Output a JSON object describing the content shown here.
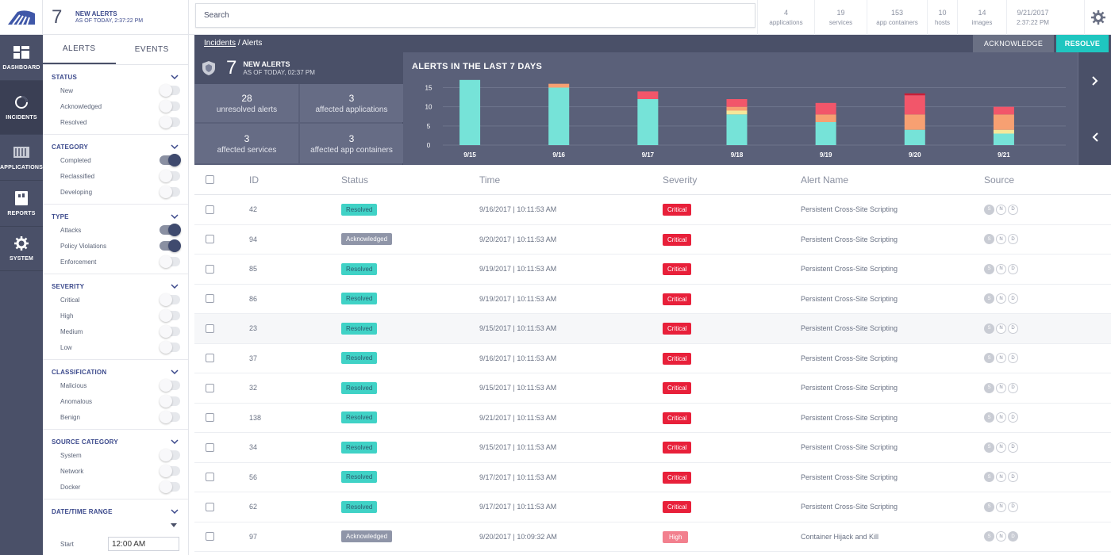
{
  "alert_summary": {
    "count": "7",
    "label": "NEW ALERTS",
    "as_of": "AS OF TODAY, 2:37:22 PM"
  },
  "nav": [
    {
      "label": "DASHBOARD",
      "icon": "dashboard-icon"
    },
    {
      "label": "INCIDENTS",
      "icon": "incidents-icon"
    },
    {
      "label": "APPLICATIONS",
      "icon": "applications-icon"
    },
    {
      "label": "REPORTS",
      "icon": "reports-icon"
    },
    {
      "label": "SYSTEM",
      "icon": "gear-icon"
    }
  ],
  "filter_tabs": [
    "ALERTS",
    "EVENTS"
  ],
  "filters": [
    {
      "title": "STATUS",
      "items": [
        {
          "label": "New",
          "on": false
        },
        {
          "label": "Acknowledged",
          "on": false
        },
        {
          "label": "Resolved",
          "on": false
        }
      ]
    },
    {
      "title": "CATEGORY",
      "items": [
        {
          "label": "Completed",
          "on": true
        },
        {
          "label": "Reclassified",
          "on": false
        },
        {
          "label": "Developing",
          "on": false
        }
      ]
    },
    {
      "title": "TYPE",
      "items": [
        {
          "label": "Attacks",
          "on": true
        },
        {
          "label": "Policy Violations",
          "on": true
        },
        {
          "label": "Enforcement",
          "on": false
        }
      ]
    },
    {
      "title": "SEVERITY",
      "items": [
        {
          "label": "Critical",
          "on": false
        },
        {
          "label": "High",
          "on": false
        },
        {
          "label": "Medium",
          "on": false
        },
        {
          "label": "Low",
          "on": false
        }
      ]
    },
    {
      "title": "CLASSIFICATION",
      "items": [
        {
          "label": "Malicious",
          "on": false
        },
        {
          "label": "Anomalous",
          "on": false
        },
        {
          "label": "Benign",
          "on": false
        }
      ]
    },
    {
      "title": "SOURCE CATEGORY",
      "items": [
        {
          "label": "System",
          "on": false
        },
        {
          "label": "Network",
          "on": false
        },
        {
          "label": "Docker",
          "on": false
        }
      ]
    }
  ],
  "datetime": {
    "title": "DATE/TIME RANGE",
    "start_label": "Start",
    "start_value": "12:00 AM"
  },
  "search": {
    "placeholder": "Search"
  },
  "stats": [
    {
      "value": "4",
      "label": "applications"
    },
    {
      "value": "19",
      "label": "services"
    },
    {
      "value": "153",
      "label": "app containers"
    },
    {
      "value": "10",
      "label": "hosts"
    },
    {
      "value": "14",
      "label": "images"
    },
    {
      "value": "9/21/2017",
      "label": "2:37:22 PM"
    }
  ],
  "breadcrumb": {
    "parent": "Incidents",
    "sep": "/",
    "current": "Alerts"
  },
  "actions": {
    "acknowledge": "ACKNOWLEDGE",
    "resolve": "RESOLVE"
  },
  "summary": {
    "count": "7",
    "label": "NEW ALERTS",
    "as_of": "AS OF TODAY, 02:37 PM",
    "cells": [
      {
        "value": "28",
        "label": "unresolved alerts"
      },
      {
        "value": "3",
        "label": "affected applications"
      },
      {
        "value": "3",
        "label": "affected services"
      },
      {
        "value": "3",
        "label": "affected app containers"
      }
    ]
  },
  "chart_data": {
    "type": "bar",
    "stacked": true,
    "title": "ALERTS IN THE LAST 7 DAYS",
    "categories": [
      "9/15",
      "9/16",
      "9/17",
      "9/18",
      "9/19",
      "9/20",
      "9/21"
    ],
    "y_ticks": [
      "0",
      "5",
      "10",
      "15"
    ],
    "ylim": [
      0,
      18
    ],
    "grid": true,
    "series": [
      {
        "values": [
          17,
          15,
          12,
          8,
          6,
          4,
          3
        ],
        "color": "#76e3d8"
      },
      {
        "values": [
          0,
          0,
          0,
          1,
          0,
          0,
          1
        ],
        "color": "#f5e79a"
      },
      {
        "values": [
          0,
          1,
          0,
          1,
          2,
          4,
          4
        ],
        "color": "#f7a072"
      },
      {
        "values": [
          0,
          0,
          2,
          2,
          3,
          5,
          2
        ],
        "color": "#f2566a"
      },
      {
        "values": [
          0,
          0,
          0,
          0,
          0,
          0.5,
          0
        ],
        "color": "#c81f38"
      }
    ]
  },
  "table": {
    "columns": [
      "ID",
      "Status",
      "Time",
      "Severity",
      "Alert Name",
      "Source"
    ],
    "rows": [
      {
        "id": "42",
        "status": "Resolved",
        "time": "9/16/2017 | 10:11:53 AM",
        "severity": "Critical",
        "name": "Persistent Cross-Site Scripting",
        "src": [
          "S",
          "N",
          "D"
        ],
        "src_filled": [
          true,
          false,
          false
        ]
      },
      {
        "id": "94",
        "status": "Acknowledged",
        "time": "9/20/2017 | 10:11:53 AM",
        "severity": "Critical",
        "name": "Persistent Cross-Site Scripting",
        "src": [
          "S",
          "N",
          "D"
        ],
        "src_filled": [
          true,
          false,
          false
        ]
      },
      {
        "id": "85",
        "status": "Resolved",
        "time": "9/19/2017 | 10:11:53 AM",
        "severity": "Critical",
        "name": "Persistent Cross-Site Scripting",
        "src": [
          "S",
          "N",
          "D"
        ],
        "src_filled": [
          true,
          false,
          false
        ]
      },
      {
        "id": "86",
        "status": "Resolved",
        "time": "9/19/2017 | 10:11:53 AM",
        "severity": "Critical",
        "name": "Persistent Cross-Site Scripting",
        "src": [
          "S",
          "N",
          "D"
        ],
        "src_filled": [
          true,
          false,
          false
        ]
      },
      {
        "id": "23",
        "status": "Resolved",
        "time": "9/15/2017 | 10:11:53 AM",
        "severity": "Critical",
        "name": "Persistent Cross-Site Scripting",
        "src": [
          "S",
          "N",
          "D"
        ],
        "src_filled": [
          true,
          false,
          false
        ]
      },
      {
        "id": "37",
        "status": "Resolved",
        "time": "9/16/2017 | 10:11:53 AM",
        "severity": "Critical",
        "name": "Persistent Cross-Site Scripting",
        "src": [
          "S",
          "N",
          "D"
        ],
        "src_filled": [
          true,
          false,
          false
        ]
      },
      {
        "id": "32",
        "status": "Resolved",
        "time": "9/15/2017 | 10:11:53 AM",
        "severity": "Critical",
        "name": "Persistent Cross-Site Scripting",
        "src": [
          "S",
          "N",
          "D"
        ],
        "src_filled": [
          true,
          false,
          false
        ]
      },
      {
        "id": "138",
        "status": "Resolved",
        "time": "9/21/2017 | 10:11:53 AM",
        "severity": "Critical",
        "name": "Persistent Cross-Site Scripting",
        "src": [
          "S",
          "N",
          "D"
        ],
        "src_filled": [
          true,
          false,
          false
        ]
      },
      {
        "id": "34",
        "status": "Resolved",
        "time": "9/15/2017 | 10:11:53 AM",
        "severity": "Critical",
        "name": "Persistent Cross-Site Scripting",
        "src": [
          "S",
          "N",
          "D"
        ],
        "src_filled": [
          true,
          false,
          false
        ]
      },
      {
        "id": "56",
        "status": "Resolved",
        "time": "9/17/2017 | 10:11:53 AM",
        "severity": "Critical",
        "name": "Persistent Cross-Site Scripting",
        "src": [
          "S",
          "N",
          "D"
        ],
        "src_filled": [
          true,
          false,
          false
        ]
      },
      {
        "id": "62",
        "status": "Resolved",
        "time": "9/17/2017 | 10:11:53 AM",
        "severity": "Critical",
        "name": "Persistent Cross-Site Scripting",
        "src": [
          "S",
          "N",
          "D"
        ],
        "src_filled": [
          true,
          false,
          false
        ]
      },
      {
        "id": "97",
        "status": "Acknowledged",
        "time": "9/20/2017 | 10:09:32 AM",
        "severity": "High",
        "name": "Container Hijack and Kill",
        "src": [
          "S",
          "N",
          "D"
        ],
        "src_filled": [
          true,
          false,
          true
        ]
      }
    ]
  },
  "colors": {
    "nav_bg": "#4a5068",
    "accent": "#1fc6c0",
    "critical": "#e8203a",
    "high": "#f2808e",
    "resolved": "#40d2c6",
    "acknowledged": "#8f95a8"
  }
}
